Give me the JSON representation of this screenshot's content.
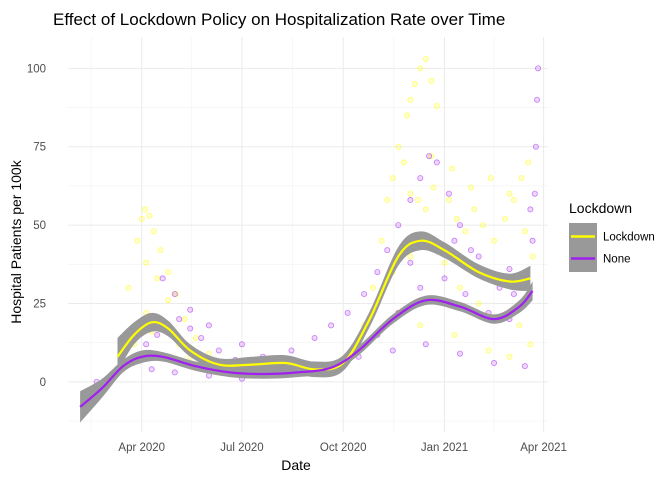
{
  "chart_data": {
    "type": "scatter",
    "title": "Effect of Lockdown Policy on Hospitalization Rate over Time",
    "xlabel": "Date",
    "ylabel": "Hospital Patients per 100k",
    "x_ticks": [
      {
        "date": "2020-04-01",
        "label": "Apr 2020"
      },
      {
        "date": "2020-07-01",
        "label": "Jul 2020"
      },
      {
        "date": "2020-10-01",
        "label": "Oct 2020"
      },
      {
        "date": "2021-01-01",
        "label": "Jan 2021"
      },
      {
        "date": "2021-04-01",
        "label": "Apr 2021"
      }
    ],
    "y_ticks": [
      0,
      25,
      50,
      75,
      100
    ],
    "xlim": [
      "2020-01-25",
      "2021-04-05"
    ],
    "ylim": [
      -16,
      110
    ],
    "grid": true,
    "legend": {
      "title": "Lockdown",
      "position": "right",
      "entries": [
        {
          "label": "Lockdown",
          "color": "#FFFF00"
        },
        {
          "label": "None",
          "color": "#A020F0"
        }
      ]
    },
    "band_color": "#999999",
    "series": [
      {
        "name": "Lockdown",
        "color": "#FFFF00",
        "smooth": [
          {
            "date": "2020-03-10",
            "y": 8,
            "lo": 3,
            "hi": 14
          },
          {
            "date": "2020-03-25",
            "y": 15,
            "lo": 12,
            "hi": 19
          },
          {
            "date": "2020-04-10",
            "y": 19,
            "lo": 16,
            "hi": 22
          },
          {
            "date": "2020-04-25",
            "y": 17,
            "lo": 14.5,
            "hi": 19.5
          },
          {
            "date": "2020-05-15",
            "y": 10,
            "lo": 8,
            "hi": 12
          },
          {
            "date": "2020-06-10",
            "y": 5.5,
            "lo": 3.5,
            "hi": 7.5
          },
          {
            "date": "2020-07-10",
            "y": 5.5,
            "lo": 3,
            "hi": 8
          },
          {
            "date": "2020-08-10",
            "y": 6,
            "lo": 3.5,
            "hi": 8.5
          },
          {
            "date": "2020-09-05",
            "y": 4,
            "lo": 1.5,
            "hi": 6.5
          },
          {
            "date": "2020-10-01",
            "y": 6,
            "lo": 3.5,
            "hi": 8.5
          },
          {
            "date": "2020-10-25",
            "y": 20,
            "lo": 17.5,
            "hi": 22.5
          },
          {
            "date": "2020-11-20",
            "y": 40,
            "lo": 37,
            "hi": 43
          },
          {
            "date": "2020-12-10",
            "y": 45,
            "lo": 42,
            "hi": 48
          },
          {
            "date": "2021-01-01",
            "y": 42,
            "lo": 39.5,
            "hi": 44.5
          },
          {
            "date": "2021-02-01",
            "y": 35,
            "lo": 33,
            "hi": 37.5
          },
          {
            "date": "2021-03-01",
            "y": 32,
            "lo": 29.5,
            "hi": 34.5
          },
          {
            "date": "2021-03-20",
            "y": 33,
            "lo": 29,
            "hi": 37
          }
        ],
        "points": [
          {
            "date": "2020-03-20",
            "y": 30
          },
          {
            "date": "2020-03-28",
            "y": 45
          },
          {
            "date": "2020-04-01",
            "y": 52
          },
          {
            "date": "2020-04-04",
            "y": 55
          },
          {
            "date": "2020-04-08",
            "y": 53
          },
          {
            "date": "2020-04-12",
            "y": 48
          },
          {
            "date": "2020-04-18",
            "y": 42
          },
          {
            "date": "2020-04-25",
            "y": 35
          },
          {
            "date": "2020-05-02",
            "y": 28
          },
          {
            "date": "2020-05-10",
            "y": 20
          },
          {
            "date": "2020-05-20",
            "y": 14
          },
          {
            "date": "2020-06-01",
            "y": 9
          },
          {
            "date": "2020-04-05",
            "y": 38
          },
          {
            "date": "2020-04-15",
            "y": 33
          },
          {
            "date": "2020-04-25",
            "y": 26
          },
          {
            "date": "2020-04-05",
            "y": 22
          },
          {
            "date": "2020-04-20",
            "y": 18
          },
          {
            "date": "2020-05-05",
            "y": 12
          },
          {
            "date": "2020-03-25",
            "y": 12
          },
          {
            "date": "2020-04-10",
            "y": 16
          },
          {
            "date": "2020-05-15",
            "y": 8
          },
          {
            "date": "2020-06-15",
            "y": 4
          },
          {
            "date": "2020-07-01",
            "y": 3
          },
          {
            "date": "2020-07-15",
            "y": 6
          },
          {
            "date": "2020-08-01",
            "y": 7
          },
          {
            "date": "2020-08-20",
            "y": 5
          },
          {
            "date": "2020-09-10",
            "y": 3
          },
          {
            "date": "2020-09-25",
            "y": 5
          },
          {
            "date": "2020-10-10",
            "y": 9
          },
          {
            "date": "2020-10-20",
            "y": 18
          },
          {
            "date": "2020-10-28",
            "y": 30
          },
          {
            "date": "2020-11-05",
            "y": 45
          },
          {
            "date": "2020-11-10",
            "y": 58
          },
          {
            "date": "2020-11-15",
            "y": 65
          },
          {
            "date": "2020-11-20",
            "y": 75
          },
          {
            "date": "2020-11-25",
            "y": 70
          },
          {
            "date": "2020-11-28",
            "y": 85
          },
          {
            "date": "2020-12-01",
            "y": 90
          },
          {
            "date": "2020-12-05",
            "y": 95
          },
          {
            "date": "2020-12-10",
            "y": 100
          },
          {
            "date": "2020-12-15",
            "y": 103
          },
          {
            "date": "2020-12-20",
            "y": 96
          },
          {
            "date": "2020-12-25",
            "y": 88
          },
          {
            "date": "2020-12-01",
            "y": 60
          },
          {
            "date": "2020-12-08",
            "y": 58
          },
          {
            "date": "2020-12-15",
            "y": 55
          },
          {
            "date": "2020-12-22",
            "y": 62
          },
          {
            "date": "2021-01-05",
            "y": 58
          },
          {
            "date": "2021-01-12",
            "y": 52
          },
          {
            "date": "2021-01-20",
            "y": 48
          },
          {
            "date": "2021-01-28",
            "y": 55
          },
          {
            "date": "2021-02-05",
            "y": 50
          },
          {
            "date": "2021-02-15",
            "y": 45
          },
          {
            "date": "2021-02-25",
            "y": 52
          },
          {
            "date": "2021-03-05",
            "y": 58
          },
          {
            "date": "2021-03-12",
            "y": 65
          },
          {
            "date": "2021-03-18",
            "y": 70
          },
          {
            "date": "2020-11-15",
            "y": 35
          },
          {
            "date": "2020-12-01",
            "y": 40
          },
          {
            "date": "2021-01-01",
            "y": 38
          },
          {
            "date": "2021-01-15",
            "y": 30
          },
          {
            "date": "2021-02-01",
            "y": 25
          },
          {
            "date": "2021-02-20",
            "y": 20
          },
          {
            "date": "2021-03-10",
            "y": 18
          },
          {
            "date": "2021-03-20",
            "y": 12
          },
          {
            "date": "2020-11-20",
            "y": 22
          },
          {
            "date": "2020-12-10",
            "y": 18
          },
          {
            "date": "2021-01-10",
            "y": 15
          },
          {
            "date": "2021-02-10",
            "y": 10
          },
          {
            "date": "2021-03-01",
            "y": 8
          },
          {
            "date": "2020-12-20",
            "y": 72
          },
          {
            "date": "2021-01-08",
            "y": 68
          },
          {
            "date": "2021-01-25",
            "y": 62
          },
          {
            "date": "2021-02-12",
            "y": 65
          },
          {
            "date": "2021-03-01",
            "y": 60
          },
          {
            "date": "2021-03-15",
            "y": 48
          },
          {
            "date": "2021-03-22",
            "y": 40
          }
        ]
      },
      {
        "name": "None",
        "color": "#A020F0",
        "smooth": [
          {
            "date": "2020-02-05",
            "y": -8,
            "lo": -13,
            "hi": -3
          },
          {
            "date": "2020-02-25",
            "y": -2,
            "lo": -5,
            "hi": 1
          },
          {
            "date": "2020-03-15",
            "y": 5,
            "lo": 3,
            "hi": 7
          },
          {
            "date": "2020-04-01",
            "y": 8,
            "lo": 6,
            "hi": 10
          },
          {
            "date": "2020-04-20",
            "y": 8,
            "lo": 6.5,
            "hi": 9.5
          },
          {
            "date": "2020-05-20",
            "y": 5,
            "lo": 3.5,
            "hi": 6.5
          },
          {
            "date": "2020-06-20",
            "y": 3,
            "lo": 1.5,
            "hi": 4.5
          },
          {
            "date": "2020-07-20",
            "y": 2.5,
            "lo": 1,
            "hi": 4
          },
          {
            "date": "2020-08-20",
            "y": 3,
            "lo": 1.5,
            "hi": 4.5
          },
          {
            "date": "2020-09-20",
            "y": 4.5,
            "lo": 3,
            "hi": 6
          },
          {
            "date": "2020-10-15",
            "y": 10,
            "lo": 8.5,
            "hi": 11.5
          },
          {
            "date": "2020-11-15",
            "y": 20,
            "lo": 18.5,
            "hi": 21.5
          },
          {
            "date": "2020-12-15",
            "y": 26,
            "lo": 24.5,
            "hi": 27.5
          },
          {
            "date": "2021-01-15",
            "y": 24,
            "lo": 22.5,
            "hi": 25.5
          },
          {
            "date": "2021-02-15",
            "y": 20,
            "lo": 18.5,
            "hi": 21.5
          },
          {
            "date": "2021-03-10",
            "y": 24,
            "lo": 22,
            "hi": 26
          },
          {
            "date": "2021-03-22",
            "y": 29,
            "lo": 26,
            "hi": 32
          }
        ],
        "points": [
          {
            "date": "2020-02-20",
            "y": 0
          },
          {
            "date": "2020-03-05",
            "y": 2
          },
          {
            "date": "2020-03-15",
            "y": 5
          },
          {
            "date": "2020-03-25",
            "y": 8
          },
          {
            "date": "2020-04-05",
            "y": 12
          },
          {
            "date": "2020-04-15",
            "y": 15
          },
          {
            "date": "2020-04-25",
            "y": 18
          },
          {
            "date": "2020-05-05",
            "y": 20
          },
          {
            "date": "2020-05-15",
            "y": 17
          },
          {
            "date": "2020-05-25",
            "y": 14
          },
          {
            "date": "2020-06-10",
            "y": 10
          },
          {
            "date": "2020-06-25",
            "y": 7
          },
          {
            "date": "2020-04-20",
            "y": 33
          },
          {
            "date": "2020-05-01",
            "y": 28
          },
          {
            "date": "2020-05-15",
            "y": 23
          },
          {
            "date": "2020-06-01",
            "y": 18
          },
          {
            "date": "2020-07-01",
            "y": 12
          },
          {
            "date": "2020-07-20",
            "y": 8
          },
          {
            "date": "2020-04-10",
            "y": 4
          },
          {
            "date": "2020-05-01",
            "y": 3
          },
          {
            "date": "2020-06-01",
            "y": 2
          },
          {
            "date": "2020-07-01",
            "y": 1
          },
          {
            "date": "2020-08-01",
            "y": 2
          },
          {
            "date": "2020-09-01",
            "y": 3
          },
          {
            "date": "2020-10-01",
            "y": 5
          },
          {
            "date": "2020-08-15",
            "y": 10
          },
          {
            "date": "2020-09-05",
            "y": 14
          },
          {
            "date": "2020-09-20",
            "y": 18
          },
          {
            "date": "2020-10-05",
            "y": 22
          },
          {
            "date": "2020-10-20",
            "y": 28
          },
          {
            "date": "2020-11-01",
            "y": 35
          },
          {
            "date": "2020-11-10",
            "y": 42
          },
          {
            "date": "2020-11-20",
            "y": 50
          },
          {
            "date": "2020-12-01",
            "y": 58
          },
          {
            "date": "2020-12-10",
            "y": 65
          },
          {
            "date": "2020-12-18",
            "y": 72
          },
          {
            "date": "2020-12-25",
            "y": 70
          },
          {
            "date": "2021-01-05",
            "y": 60
          },
          {
            "date": "2021-01-15",
            "y": 50
          },
          {
            "date": "2021-01-25",
            "y": 42
          },
          {
            "date": "2021-02-05",
            "y": 35
          },
          {
            "date": "2021-02-20",
            "y": 30
          },
          {
            "date": "2021-03-05",
            "y": 28
          },
          {
            "date": "2020-11-01",
            "y": 15
          },
          {
            "date": "2020-11-20",
            "y": 22
          },
          {
            "date": "2020-12-10",
            "y": 30
          },
          {
            "date": "2021-01-01",
            "y": 33
          },
          {
            "date": "2021-01-20",
            "y": 28
          },
          {
            "date": "2021-02-10",
            "y": 22
          },
          {
            "date": "2021-03-01",
            "y": 20
          },
          {
            "date": "2021-03-15",
            "y": 30
          },
          {
            "date": "2021-03-22",
            "y": 45
          },
          {
            "date": "2021-03-24",
            "y": 60
          },
          {
            "date": "2021-03-25",
            "y": 75
          },
          {
            "date": "2021-03-26",
            "y": 90
          },
          {
            "date": "2021-03-27",
            "y": 100
          },
          {
            "date": "2020-10-15",
            "y": 8
          },
          {
            "date": "2020-11-15",
            "y": 10
          },
          {
            "date": "2020-12-15",
            "y": 12
          },
          {
            "date": "2021-01-15",
            "y": 9
          },
          {
            "date": "2021-02-15",
            "y": 6
          },
          {
            "date": "2021-03-15",
            "y": 5
          },
          {
            "date": "2020-12-01",
            "y": 38
          },
          {
            "date": "2021-01-10",
            "y": 45
          },
          {
            "date": "2021-02-01",
            "y": 40
          },
          {
            "date": "2021-03-01",
            "y": 36
          },
          {
            "date": "2021-03-20",
            "y": 55
          }
        ]
      }
    ]
  }
}
